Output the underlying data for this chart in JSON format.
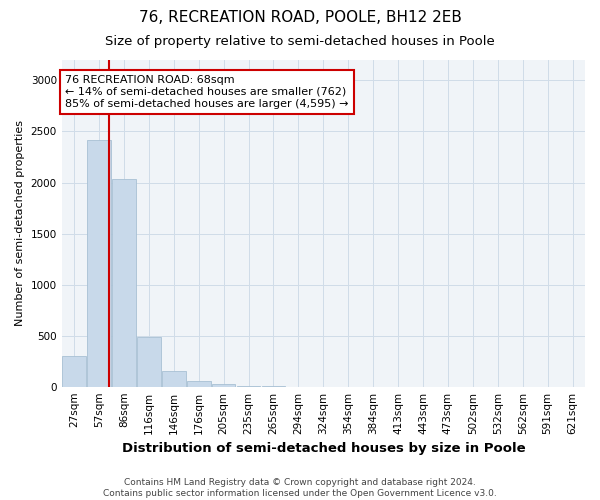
{
  "title1": "76, RECREATION ROAD, POOLE, BH12 2EB",
  "title2": "Size of property relative to semi-detached houses in Poole",
  "xlabel": "Distribution of semi-detached houses by size in Poole",
  "ylabel": "Number of semi-detached properties",
  "categories": [
    "27sqm",
    "57sqm",
    "86sqm",
    "116sqm",
    "146sqm",
    "176sqm",
    "205sqm",
    "235sqm",
    "265sqm",
    "294sqm",
    "324sqm",
    "354sqm",
    "384sqm",
    "413sqm",
    "443sqm",
    "473sqm",
    "502sqm",
    "532sqm",
    "562sqm",
    "591sqm",
    "621sqm"
  ],
  "values": [
    300,
    2420,
    2030,
    490,
    150,
    60,
    30,
    10,
    3,
    0,
    0,
    0,
    0,
    0,
    0,
    0,
    0,
    0,
    0,
    0,
    0
  ],
  "bar_color": "#c8d9ea",
  "bar_edge_color": "#a8c0d4",
  "property_line_color": "#cc0000",
  "property_line_x": 1.38,
  "annotation_text": "76 RECREATION ROAD: 68sqm\n← 14% of semi-detached houses are smaller (762)\n85% of semi-detached houses are larger (4,595) →",
  "annotation_box_color": "#ffffff",
  "annotation_box_edge_color": "#cc0000",
  "ylim": [
    0,
    3200
  ],
  "yticks": [
    0,
    500,
    1000,
    1500,
    2000,
    2500,
    3000
  ],
  "grid_color": "#d0dce8",
  "background_color": "#ffffff",
  "plot_bg_color": "#f0f4f8",
  "footer_text": "Contains HM Land Registry data © Crown copyright and database right 2024.\nContains public sector information licensed under the Open Government Licence v3.0.",
  "title1_fontsize": 11,
  "title2_fontsize": 9.5,
  "xlabel_fontsize": 9.5,
  "ylabel_fontsize": 8,
  "annotation_fontsize": 8,
  "footer_fontsize": 6.5,
  "tick_fontsize": 7.5
}
